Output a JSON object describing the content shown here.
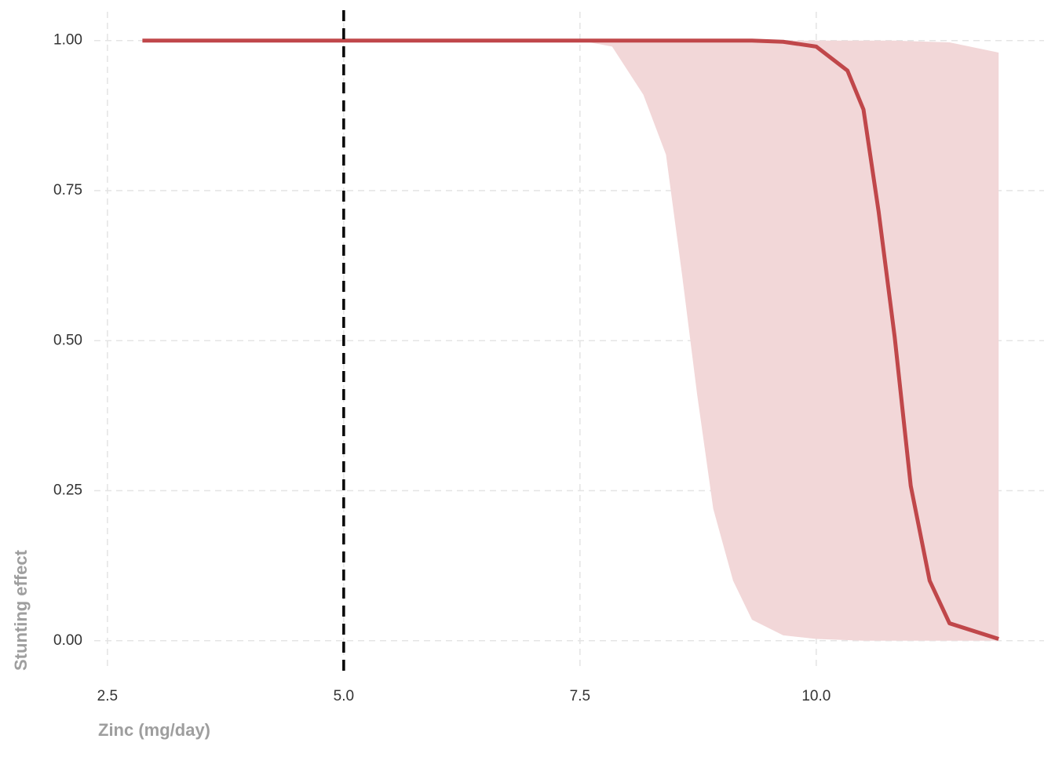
{
  "chart_data": {
    "type": "line",
    "x_label": "Zinc (mg/day)",
    "y_label": "Stunting effect",
    "x": [
      2.87,
      7.5,
      7.84,
      8.17,
      8.41,
      8.58,
      8.74,
      8.91,
      9.12,
      9.32,
      9.65,
      10.0,
      10.33,
      10.5,
      10.66,
      10.83,
      11.0,
      11.2,
      11.41,
      11.93
    ],
    "series": [
      {
        "color": "#c0474a",
        "values": [
          1,
          1,
          1,
          1,
          1,
          1,
          1,
          1,
          1,
          1,
          0.998,
          0.99,
          0.95,
          0.885,
          0.715,
          0.506,
          0.258,
          0.1,
          0.029,
          0.003
        ],
        "lower": [
          1,
          1,
          0.99,
          0.91,
          0.81,
          0.61,
          0.41,
          0.22,
          0.1,
          0.035,
          0.009,
          0.003,
          0.001,
          0,
          0,
          0,
          0,
          0,
          0,
          0
        ],
        "upper": [
          1,
          1,
          1,
          1,
          1,
          1,
          1,
          1,
          1,
          1,
          1,
          1,
          1,
          1,
          1,
          1,
          0.999,
          0.998,
          0.997,
          0.98
        ],
        "band_color": "#f2d7d8"
      }
    ],
    "vline": 5.0,
    "xlim": [
      2.36,
      12.41
    ],
    "ylim": [
      -0.05,
      1.048
    ],
    "xticks": [
      2.5,
      {
        "value": 5.0,
        "label": "5.0"
      },
      7.5,
      {
        "value": 10.0,
        "label": "10.0"
      }
    ],
    "yticks": [
      {
        "value": 0,
        "label": "0.00"
      },
      {
        "value": 0.25,
        "label": "0.25"
      },
      {
        "value": 0.5,
        "label": "0.50"
      },
      {
        "value": 0.75,
        "label": "0.75"
      },
      {
        "value": 1,
        "label": "1.00"
      }
    ],
    "grid": true
  }
}
